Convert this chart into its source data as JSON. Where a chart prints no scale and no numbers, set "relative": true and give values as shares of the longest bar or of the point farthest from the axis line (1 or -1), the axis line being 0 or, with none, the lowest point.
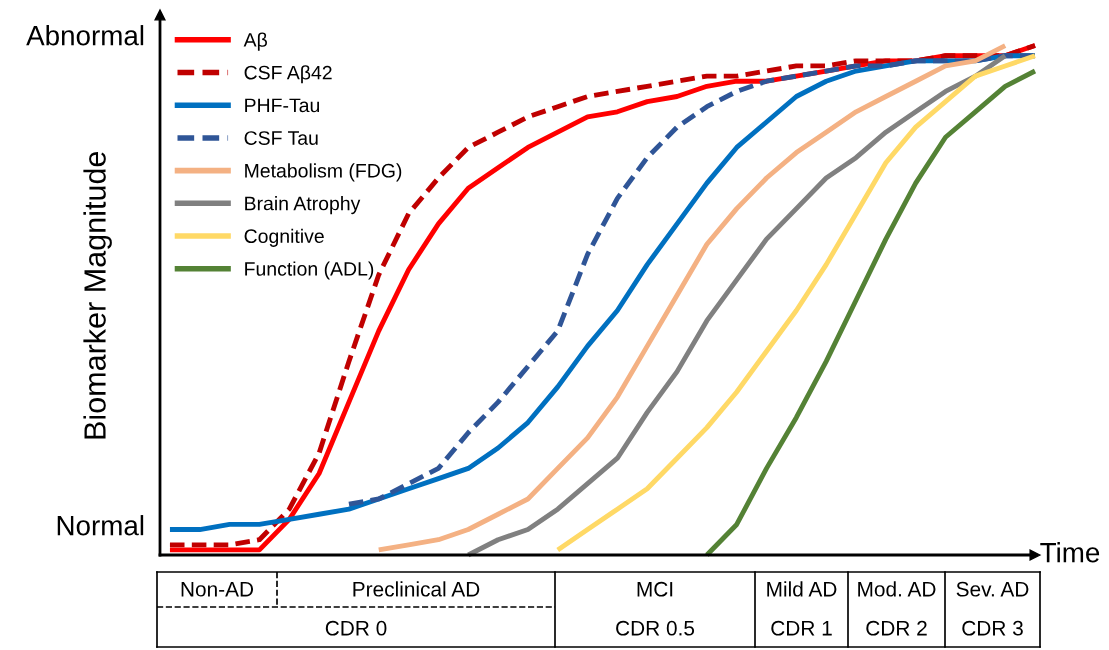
{
  "chart_data": {
    "type": "line",
    "xlabel": "Time",
    "ylabel": "Biomarker Magnitude",
    "categories": [
      null,
      null,
      null,
      null,
      null,
      null,
      null,
      null,
      null,
      null,
      null,
      null,
      null,
      null,
      null,
      null,
      null,
      null,
      null,
      null,
      null,
      null,
      null,
      null,
      null,
      null,
      null,
      null,
      null,
      null
    ],
    "relative": true,
    "legend": "top left",
    "series": [
      {
        "name": "Aβ",
        "color": "#ff0000",
        "line_style": "solid",
        "values": [
          0.01,
          0.01,
          0.01,
          0.01,
          0.07,
          0.16,
          0.3,
          0.44,
          0.56,
          0.65,
          0.72,
          0.76,
          0.8,
          0.83,
          0.86,
          0.87,
          0.89,
          0.9,
          0.92,
          0.93,
          0.93,
          0.94,
          0.95,
          0.96,
          0.97,
          0.97,
          0.98,
          0.98,
          0.98,
          1.0
        ]
      },
      {
        "name": "CSF Aβ42",
        "color": "#c00000",
        "line_style": "dashed",
        "values": [
          0.02,
          0.02,
          0.02,
          0.03,
          0.09,
          0.2,
          0.38,
          0.55,
          0.67,
          0.74,
          0.8,
          0.83,
          0.86,
          0.88,
          0.9,
          0.91,
          0.92,
          0.93,
          0.94,
          0.94,
          0.95,
          0.96,
          0.96,
          0.97,
          0.97,
          0.97,
          0.98,
          0.98,
          0.98,
          1.0
        ]
      },
      {
        "name": "PHF-Tau",
        "color": "#0070c0",
        "line_style": "solid",
        "values": [
          0.05,
          0.05,
          0.06,
          0.06,
          0.07,
          0.08,
          0.09,
          0.11,
          0.13,
          0.15,
          0.17,
          0.21,
          0.26,
          0.33,
          0.41,
          0.48,
          0.57,
          0.65,
          0.73,
          0.8,
          0.85,
          0.9,
          0.93,
          0.95,
          0.96,
          0.97,
          0.97,
          0.97,
          0.98,
          0.98
        ]
      },
      {
        "name": "CSF Tau",
        "color": "#2f5597",
        "line_style": "dashed",
        "values": [
          null,
          null,
          null,
          null,
          null,
          null,
          0.1,
          0.11,
          0.14,
          0.17,
          0.24,
          0.3,
          0.37,
          0.44,
          0.59,
          0.7,
          0.78,
          0.84,
          0.88,
          0.91,
          0.93,
          0.94,
          0.95,
          0.96,
          0.96,
          0.97,
          0.97,
          0.97,
          0.98,
          0.98
        ]
      },
      {
        "name": "Metabolism (FDG)",
        "color": "#f4b183",
        "line_style": "solid",
        "values": [
          null,
          null,
          null,
          null,
          null,
          null,
          null,
          0.01,
          0.02,
          0.03,
          0.05,
          0.08,
          0.11,
          0.17,
          0.23,
          0.31,
          0.41,
          0.51,
          0.61,
          0.68,
          0.74,
          0.79,
          0.83,
          0.87,
          0.9,
          0.93,
          0.96,
          0.97,
          1.0,
          null
        ]
      },
      {
        "name": "Brain Atrophy",
        "color": "#808080",
        "line_style": "solid",
        "values": [
          null,
          null,
          null,
          null,
          null,
          null,
          null,
          null,
          null,
          null,
          0,
          0.03,
          0.05,
          0.09,
          0.14,
          0.19,
          0.28,
          0.36,
          0.46,
          0.54,
          0.62,
          0.68,
          0.74,
          0.78,
          0.83,
          0.87,
          0.91,
          0.94,
          0.98,
          null
        ]
      },
      {
        "name": "Cognitive",
        "color": "#ffd966",
        "line_style": "solid",
        "values": [
          null,
          null,
          null,
          null,
          null,
          null,
          null,
          null,
          null,
          null,
          null,
          null,
          null,
          0.01,
          0.05,
          0.09,
          0.13,
          0.19,
          0.25,
          0.32,
          0.4,
          0.48,
          0.57,
          0.67,
          0.77,
          0.84,
          0.89,
          0.94,
          0.96,
          0.98
        ]
      },
      {
        "name": "Function (ADL)",
        "color": "#548235",
        "line_style": "solid",
        "values": [
          null,
          null,
          null,
          null,
          null,
          null,
          null,
          null,
          null,
          null,
          null,
          null,
          null,
          null,
          null,
          null,
          null,
          null,
          0,
          0.06,
          0.17,
          0.27,
          0.38,
          0.5,
          0.62,
          0.73,
          0.82,
          0.87,
          0.92,
          0.95
        ]
      }
    ],
    "annotations": [
      "Non-AD",
      "Preclinical AD",
      "MCI",
      "Mild AD",
      "Mod. AD",
      "Sev. AD",
      "CDR 0",
      "CDR 0.5",
      "CDR 1",
      "CDR 2",
      "CDR 3",
      "Normal",
      "Abnormal"
    ]
  }
}
